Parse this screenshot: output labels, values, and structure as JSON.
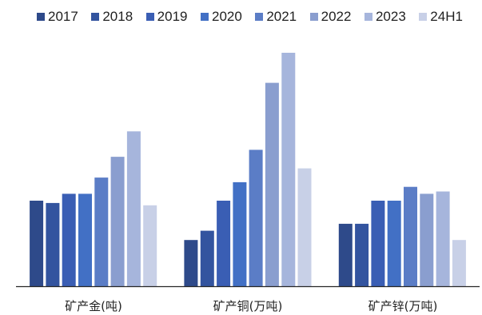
{
  "chart_data": {
    "type": "bar",
    "categories": [
      "矿产金(吨)",
      "矿产铜(万吨)",
      "矿产锌(万吨)"
    ],
    "series": [
      {
        "name": "2017",
        "color": "#2E4A8A",
        "values": [
          37,
          20,
          27
        ]
      },
      {
        "name": "2018",
        "color": "#33549F",
        "values": [
          36,
          24,
          27
        ]
      },
      {
        "name": "2019",
        "color": "#3A5EB4",
        "values": [
          40,
          37,
          37
        ]
      },
      {
        "name": "2020",
        "color": "#4270C5",
        "values": [
          40,
          45,
          37
        ]
      },
      {
        "name": "2021",
        "color": "#5B7DC6",
        "values": [
          47,
          59,
          43
        ]
      },
      {
        "name": "2022",
        "color": "#8A9ECF",
        "values": [
          56,
          88,
          40
        ]
      },
      {
        "name": "2023",
        "color": "#A6B5DC",
        "values": [
          67,
          101,
          41
        ]
      },
      {
        "name": "24H1",
        "color": "#C8D0E7",
        "values": [
          35,
          51,
          20
        ]
      }
    ],
    "ylim": [
      0,
      110
    ],
    "y_axis_visible": false,
    "grid": false,
    "legend": "top"
  }
}
